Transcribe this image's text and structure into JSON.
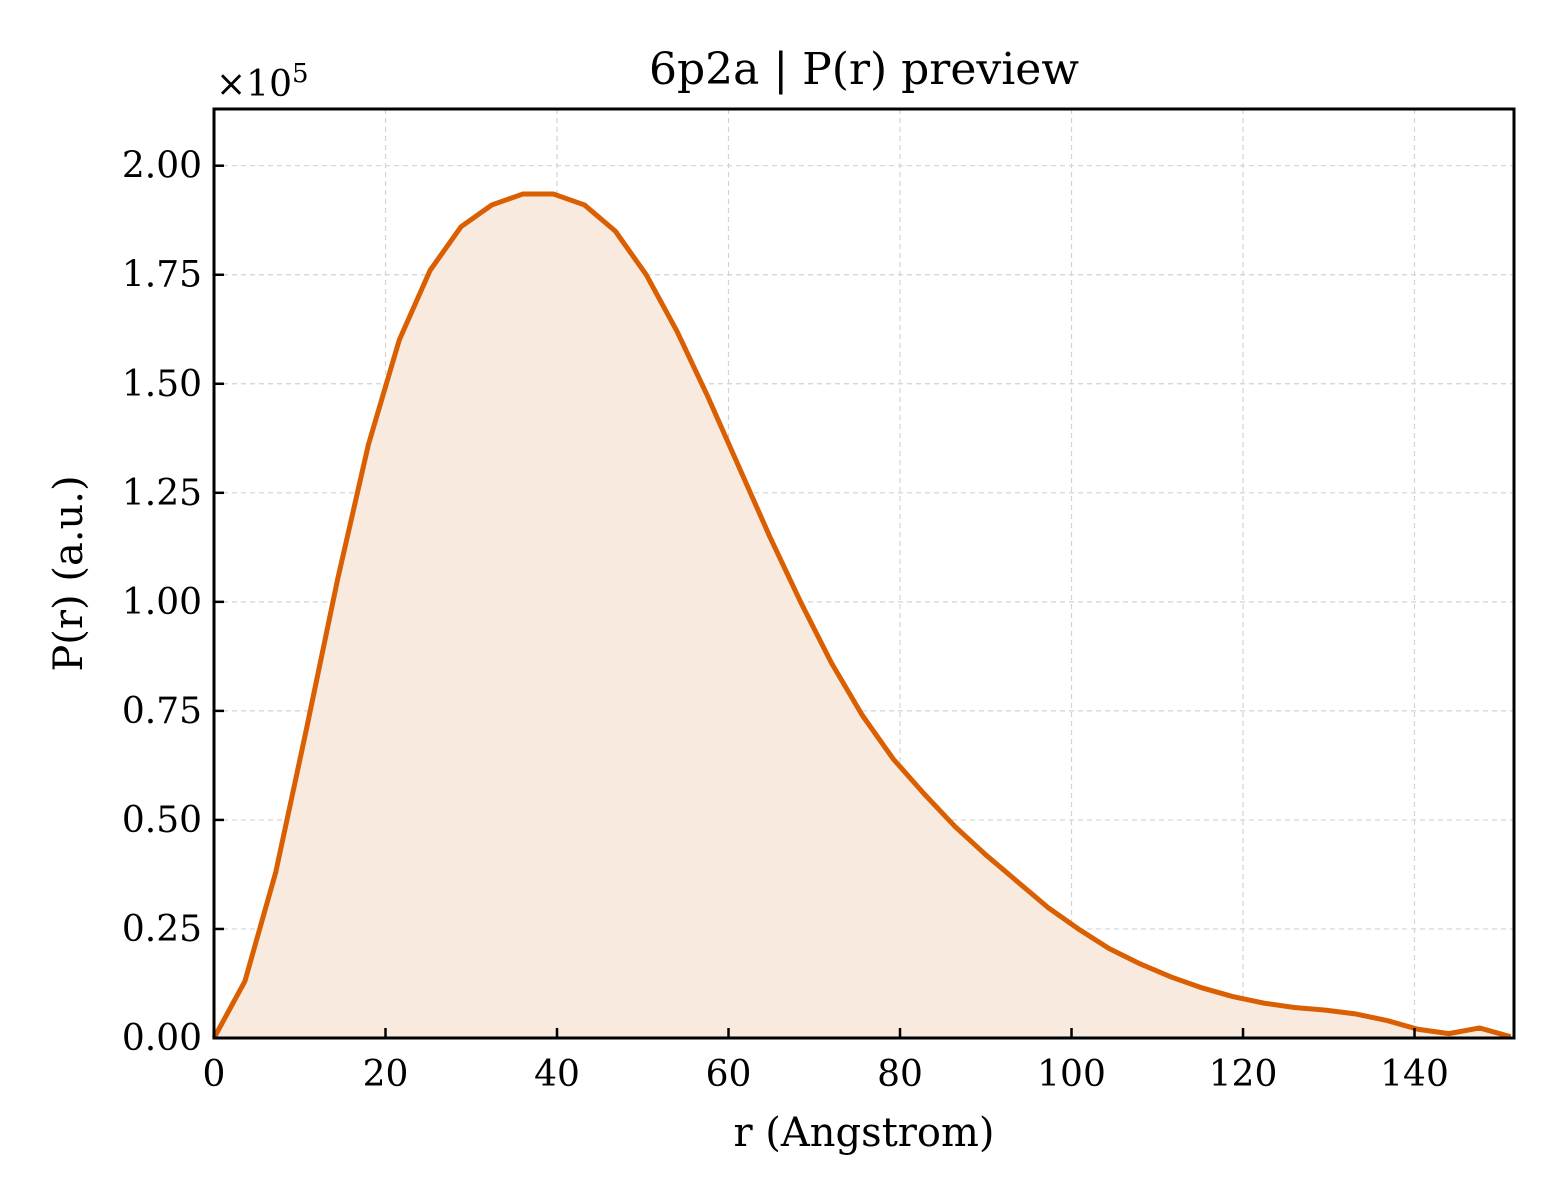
{
  "chart_data": {
    "type": "area",
    "title": "6p2a | P(r) preview",
    "xlabel": "r (Angstrom)",
    "ylabel": "P(r) (a.u.)",
    "y_multiplier_label": "×10",
    "y_multiplier_exponent": "5",
    "xlim": [
      0,
      151.6
    ],
    "ylim": [
      0,
      2.13
    ],
    "y_scale_factor": 100000,
    "grid": true,
    "x_ticks": [
      0,
      20,
      40,
      60,
      80,
      100,
      120,
      140
    ],
    "x_tick_labels": [
      "0",
      "20",
      "40",
      "60",
      "80",
      "100",
      "120",
      "140"
    ],
    "y_ticks": [
      0,
      0.25,
      0.5,
      0.75,
      1.0,
      1.25,
      1.5,
      1.75,
      2.0
    ],
    "y_tick_labels": [
      "0.00",
      "0.25",
      "0.50",
      "0.75",
      "1.00",
      "1.25",
      "1.50",
      "1.75",
      "2.00"
    ],
    "colors": {
      "line": "#d95f02",
      "fill": "#f9eadf",
      "grid": "#d3d3d3",
      "axes": "#000000"
    },
    "series": [
      {
        "x": [
          0,
          3.6,
          7.2,
          10.8,
          14.4,
          18.0,
          21.6,
          25.2,
          28.8,
          32.4,
          36.0,
          39.6,
          43.2,
          46.8,
          50.4,
          54.0,
          57.6,
          61.2,
          64.8,
          68.4,
          72.0,
          75.6,
          79.2,
          82.8,
          86.4,
          90.0,
          93.6,
          97.2,
          100.8,
          104.4,
          108.0,
          111.6,
          115.2,
          118.8,
          122.4,
          126.0,
          129.6,
          133.2,
          136.8,
          140.4,
          144.0,
          147.6,
          151.2
        ],
        "values": [
          0.0,
          0.13,
          0.38,
          0.71,
          1.05,
          1.36,
          1.6,
          1.76,
          1.86,
          1.91,
          1.935,
          1.935,
          1.91,
          1.85,
          1.75,
          1.62,
          1.47,
          1.31,
          1.15,
          1.0,
          0.86,
          0.74,
          0.64,
          0.56,
          0.485,
          0.42,
          0.36,
          0.3,
          0.25,
          0.205,
          0.17,
          0.14,
          0.115,
          0.095,
          0.08,
          0.07,
          0.064,
          0.055,
          0.04,
          0.02,
          0.01,
          0.023,
          0.003
        ]
      }
    ]
  }
}
